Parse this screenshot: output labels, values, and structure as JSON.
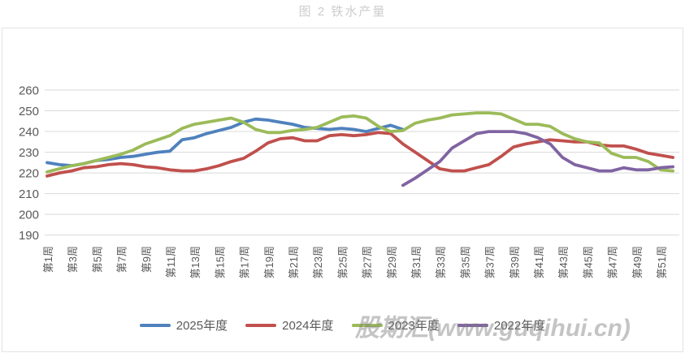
{
  "title": "图 2 铁水产量",
  "watermark": "股期汇(www.guqihui.cn)",
  "colors": {
    "series_2025": "#4F81BD",
    "series_2024": "#C0504D",
    "series_2023": "#9BBB59",
    "series_2022": "#8064A2",
    "gridline": "#D9D9D9",
    "axis_text": "#595959",
    "title_text": "#CDCDCD",
    "frame_border": "#E3E3E3",
    "watermark_text": "#7D7D7D"
  },
  "chart_data": {
    "type": "line",
    "title": "图 2 铁水产量",
    "xlabel": "",
    "ylabel": "",
    "ylim": [
      190,
      260
    ],
    "y_ticks": [
      190,
      200,
      210,
      220,
      230,
      240,
      250,
      260
    ],
    "weeks_total": 52,
    "grid": true,
    "legend_position": "bottom",
    "x_tick_labels": [
      "第1周",
      "第3周",
      "第5周",
      "第7周",
      "第9周",
      "第11周",
      "第13周",
      "第15周",
      "第17周",
      "第19周",
      "第21周",
      "第23周",
      "第25周",
      "第27周",
      "第29周",
      "第31周",
      "第33周",
      "第35周",
      "第37周",
      "第39周",
      "第41周",
      "第43周",
      "第45周",
      "第47周",
      "第49周",
      "第51周"
    ],
    "series": [
      {
        "name": "2025年度",
        "color": "#4F81BD",
        "start_week": 1,
        "values": [
          225,
          224,
          223.5,
          224.5,
          226,
          226.5,
          227.5,
          228,
          229,
          230,
          230.5,
          236,
          237,
          239,
          240.5,
          242,
          244.5,
          246,
          245.5,
          244.5,
          243.5,
          242,
          241.5,
          241,
          241.5,
          241,
          240,
          241.5,
          243,
          241
        ]
      },
      {
        "name": "2024年度",
        "color": "#C0504D",
        "start_week": 1,
        "values": [
          218.5,
          220,
          221,
          222.5,
          223,
          224,
          224.5,
          224,
          223,
          222.5,
          221.5,
          221,
          221,
          222,
          223.5,
          225.5,
          227,
          230.5,
          234.5,
          236.5,
          237,
          235.5,
          235.5,
          238,
          238.5,
          238,
          238.5,
          239.5,
          239,
          234,
          230,
          226,
          222,
          221,
          221,
          222.5,
          224,
          228,
          232.5,
          234,
          235,
          236,
          235.5,
          235,
          235,
          233.5,
          233,
          233,
          231.5,
          229.5,
          228.5,
          227.5
        ]
      },
      {
        "name": "2023年度",
        "color": "#9BBB59",
        "start_week": 1,
        "values": [
          220.5,
          222,
          223.5,
          224.5,
          226,
          227.5,
          229,
          231,
          234,
          236,
          238,
          241.5,
          243.5,
          244.5,
          245.5,
          246.5,
          244.5,
          241,
          239.5,
          239.5,
          240.5,
          241,
          242,
          244.5,
          247,
          247.5,
          246.5,
          242.5,
          240,
          240.5,
          244,
          245.5,
          246.5,
          248,
          248.5,
          249,
          249,
          248.5,
          246,
          243.5,
          243.5,
          242.5,
          239,
          236.5,
          235,
          234.5,
          229.5,
          227.5,
          227.5,
          225.5,
          221.5,
          221
        ]
      },
      {
        "name": "2022年度",
        "color": "#8064A2",
        "start_week": 30,
        "values": [
          214,
          217.5,
          221.5,
          225.5,
          232,
          235.5,
          239,
          240,
          240,
          240,
          239,
          237,
          234,
          227.5,
          224,
          222.5,
          221,
          221,
          222.5,
          221.5,
          221.5,
          222.5,
          223
        ]
      }
    ]
  }
}
